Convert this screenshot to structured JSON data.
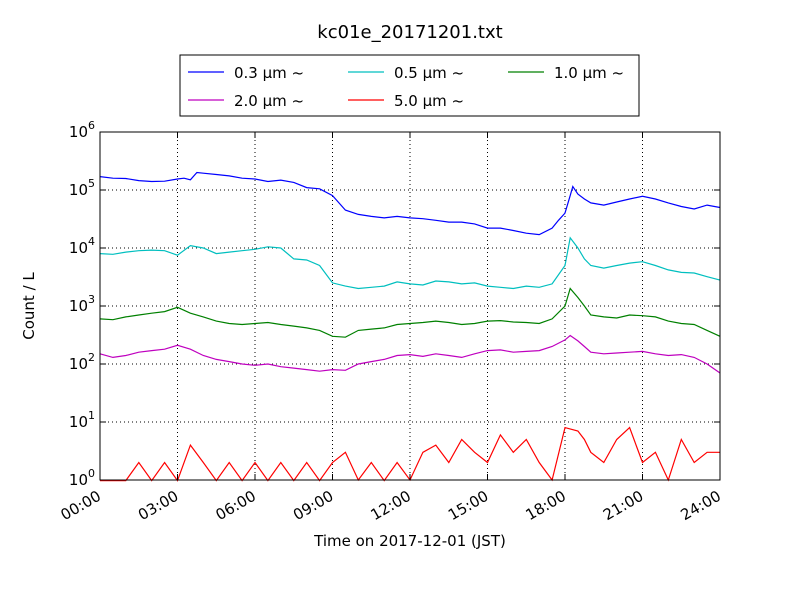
{
  "chart_data": {
    "type": "line",
    "title": "kc01e_20171201.txt",
    "xlabel": "Time on 2017-12-01 (JST)",
    "ylabel": "Count / L",
    "yscale": "log",
    "ylim_exp": [
      0,
      6
    ],
    "y_tick_labels": [
      "10",
      "10",
      "10",
      "10",
      "10",
      "10",
      "10"
    ],
    "y_tick_exponents": [
      "0",
      "1",
      "2",
      "3",
      "4",
      "5",
      "6"
    ],
    "xlim_hours": [
      0,
      24
    ],
    "x_tick_labels": [
      "00:00",
      "03:00",
      "06:00",
      "09:00",
      "12:00",
      "15:00",
      "18:00",
      "21:00",
      "24:00"
    ],
    "grid": true,
    "legend_position": "top-center, above plot",
    "series": [
      {
        "name": "0.3 μm ~",
        "color": "#0000ff",
        "points": [
          [
            0,
            170000
          ],
          [
            0.5,
            160000
          ],
          [
            1,
            158000
          ],
          [
            1.5,
            145000
          ],
          [
            2,
            140000
          ],
          [
            2.5,
            142000
          ],
          [
            3,
            155000
          ],
          [
            3.25,
            160000
          ],
          [
            3.5,
            150000
          ],
          [
            3.75,
            200000
          ],
          [
            4,
            195000
          ],
          [
            4.5,
            185000
          ],
          [
            5,
            175000
          ],
          [
            5.5,
            160000
          ],
          [
            6,
            155000
          ],
          [
            6.5,
            140000
          ],
          [
            7,
            148000
          ],
          [
            7.5,
            135000
          ],
          [
            8,
            110000
          ],
          [
            8.5,
            105000
          ],
          [
            9,
            80000
          ],
          [
            9.5,
            45000
          ],
          [
            10,
            38000
          ],
          [
            10.5,
            35000
          ],
          [
            11,
            33000
          ],
          [
            11.5,
            35000
          ],
          [
            12,
            33000
          ],
          [
            12.5,
            32000
          ],
          [
            13,
            30000
          ],
          [
            13.5,
            28000
          ],
          [
            14,
            28000
          ],
          [
            14.5,
            26000
          ],
          [
            15,
            22000
          ],
          [
            15.5,
            22000
          ],
          [
            16,
            20000
          ],
          [
            16.5,
            18000
          ],
          [
            17,
            17000
          ],
          [
            17.5,
            22000
          ],
          [
            17.75,
            30000
          ],
          [
            18,
            40000
          ],
          [
            18.2,
            80000
          ],
          [
            18.3,
            115000
          ],
          [
            18.5,
            85000
          ],
          [
            18.75,
            70000
          ],
          [
            19,
            60000
          ],
          [
            19.5,
            55000
          ],
          [
            20,
            62000
          ],
          [
            20.5,
            70000
          ],
          [
            21,
            78000
          ],
          [
            21.5,
            70000
          ],
          [
            22,
            60000
          ],
          [
            22.5,
            52000
          ],
          [
            23,
            47000
          ],
          [
            23.5,
            55000
          ],
          [
            24,
            50000
          ]
        ]
      },
      {
        "name": "0.5 μm ~",
        "color": "#00bfbf",
        "points": [
          [
            0,
            8000
          ],
          [
            0.5,
            7800
          ],
          [
            1,
            8500
          ],
          [
            1.5,
            9000
          ],
          [
            2,
            9200
          ],
          [
            2.5,
            9000
          ],
          [
            3,
            7500
          ],
          [
            3.5,
            11000
          ],
          [
            4,
            10000
          ],
          [
            4.5,
            8000
          ],
          [
            5,
            8500
          ],
          [
            5.5,
            9000
          ],
          [
            6,
            9500
          ],
          [
            6.5,
            10500
          ],
          [
            7,
            10000
          ],
          [
            7.5,
            6500
          ],
          [
            8,
            6200
          ],
          [
            8.5,
            5000
          ],
          [
            9,
            2500
          ],
          [
            9.5,
            2200
          ],
          [
            10,
            2000
          ],
          [
            10.5,
            2100
          ],
          [
            11,
            2200
          ],
          [
            11.5,
            2600
          ],
          [
            12,
            2400
          ],
          [
            12.5,
            2300
          ],
          [
            13,
            2700
          ],
          [
            13.5,
            2600
          ],
          [
            14,
            2400
          ],
          [
            14.5,
            2500
          ],
          [
            15,
            2200
          ],
          [
            15.5,
            2100
          ],
          [
            16,
            2000
          ],
          [
            16.5,
            2200
          ],
          [
            17,
            2100
          ],
          [
            17.5,
            2400
          ],
          [
            18,
            5000
          ],
          [
            18.2,
            15000
          ],
          [
            18.5,
            10000
          ],
          [
            18.75,
            6500
          ],
          [
            19,
            5000
          ],
          [
            19.5,
            4500
          ],
          [
            20,
            5000
          ],
          [
            20.5,
            5500
          ],
          [
            21,
            5800
          ],
          [
            21.5,
            5000
          ],
          [
            22,
            4200
          ],
          [
            22.5,
            3800
          ],
          [
            23,
            3700
          ],
          [
            23.5,
            3200
          ],
          [
            24,
            2800
          ]
        ]
      },
      {
        "name": "1.0 μm ~",
        "color": "#008000",
        "points": [
          [
            0,
            600
          ],
          [
            0.5,
            580
          ],
          [
            1,
            650
          ],
          [
            1.5,
            700
          ],
          [
            2,
            750
          ],
          [
            2.5,
            800
          ],
          [
            3,
            950
          ],
          [
            3.5,
            750
          ],
          [
            4,
            650
          ],
          [
            4.5,
            550
          ],
          [
            5,
            500
          ],
          [
            5.5,
            480
          ],
          [
            6,
            500
          ],
          [
            6.5,
            520
          ],
          [
            7,
            480
          ],
          [
            7.5,
            450
          ],
          [
            8,
            420
          ],
          [
            8.5,
            380
          ],
          [
            9,
            300
          ],
          [
            9.5,
            290
          ],
          [
            10,
            380
          ],
          [
            10.5,
            400
          ],
          [
            11,
            420
          ],
          [
            11.5,
            480
          ],
          [
            12,
            500
          ],
          [
            12.5,
            520
          ],
          [
            13,
            550
          ],
          [
            13.5,
            520
          ],
          [
            14,
            480
          ],
          [
            14.5,
            500
          ],
          [
            15,
            550
          ],
          [
            15.5,
            560
          ],
          [
            16,
            530
          ],
          [
            16.5,
            520
          ],
          [
            17,
            500
          ],
          [
            17.5,
            600
          ],
          [
            18,
            1000
          ],
          [
            18.2,
            2000
          ],
          [
            18.5,
            1400
          ],
          [
            18.75,
            1000
          ],
          [
            19,
            700
          ],
          [
            19.5,
            650
          ],
          [
            20,
            620
          ],
          [
            20.5,
            700
          ],
          [
            21,
            680
          ],
          [
            21.5,
            650
          ],
          [
            22,
            550
          ],
          [
            22.5,
            500
          ],
          [
            23,
            480
          ],
          [
            23.5,
            380
          ],
          [
            24,
            300
          ]
        ]
      },
      {
        "name": "2.0 μm ~",
        "color": "#bf00bf",
        "points": [
          [
            0,
            150
          ],
          [
            0.5,
            130
          ],
          [
            1,
            140
          ],
          [
            1.5,
            160
          ],
          [
            2,
            170
          ],
          [
            2.5,
            180
          ],
          [
            3,
            210
          ],
          [
            3.5,
            180
          ],
          [
            4,
            140
          ],
          [
            4.5,
            120
          ],
          [
            5,
            110
          ],
          [
            5.5,
            100
          ],
          [
            6,
            95
          ],
          [
            6.5,
            100
          ],
          [
            7,
            90
          ],
          [
            7.5,
            85
          ],
          [
            8,
            80
          ],
          [
            8.5,
            75
          ],
          [
            9,
            80
          ],
          [
            9.5,
            78
          ],
          [
            10,
            100
          ],
          [
            10.5,
            110
          ],
          [
            11,
            120
          ],
          [
            11.5,
            140
          ],
          [
            12,
            145
          ],
          [
            12.5,
            135
          ],
          [
            13,
            150
          ],
          [
            13.5,
            140
          ],
          [
            14,
            130
          ],
          [
            14.5,
            150
          ],
          [
            15,
            170
          ],
          [
            15.5,
            175
          ],
          [
            16,
            160
          ],
          [
            16.5,
            165
          ],
          [
            17,
            170
          ],
          [
            17.5,
            200
          ],
          [
            18,
            260
          ],
          [
            18.2,
            310
          ],
          [
            18.5,
            250
          ],
          [
            18.75,
            200
          ],
          [
            19,
            160
          ],
          [
            19.5,
            150
          ],
          [
            20,
            155
          ],
          [
            20.5,
            160
          ],
          [
            21,
            165
          ],
          [
            21.5,
            150
          ],
          [
            22,
            140
          ],
          [
            22.5,
            145
          ],
          [
            23,
            130
          ],
          [
            23.5,
            100
          ],
          [
            24,
            70
          ]
        ]
      },
      {
        "name": "5.0 μm ~",
        "color": "#ff0000",
        "points": [
          [
            0,
            0
          ],
          [
            1,
            0
          ],
          [
            1.5,
            2
          ],
          [
            2,
            0
          ],
          [
            2.5,
            2
          ],
          [
            3,
            0
          ],
          [
            3.5,
            4
          ],
          [
            4,
            2
          ],
          [
            4.5,
            0
          ],
          [
            5,
            2
          ],
          [
            5.5,
            0
          ],
          [
            6,
            2
          ],
          [
            6.5,
            0
          ],
          [
            7,
            2
          ],
          [
            7.5,
            0
          ],
          [
            8,
            2
          ],
          [
            8.5,
            0
          ],
          [
            9,
            2
          ],
          [
            9.5,
            3
          ],
          [
            10,
            1
          ],
          [
            10.5,
            2
          ],
          [
            11,
            0
          ],
          [
            11.5,
            2
          ],
          [
            12,
            1
          ],
          [
            12.5,
            3
          ],
          [
            13,
            4
          ],
          [
            13.5,
            2
          ],
          [
            14,
            5
          ],
          [
            14.5,
            3
          ],
          [
            15,
            2
          ],
          [
            15.5,
            6
          ],
          [
            16,
            3
          ],
          [
            16.5,
            5
          ],
          [
            17,
            2
          ],
          [
            17.5,
            1
          ],
          [
            18,
            8
          ],
          [
            18.5,
            7
          ],
          [
            18.75,
            5
          ],
          [
            19,
            3
          ],
          [
            19.5,
            2
          ],
          [
            20,
            5
          ],
          [
            20.5,
            8
          ],
          [
            21,
            2
          ],
          [
            21.5,
            3
          ],
          [
            22,
            1
          ],
          [
            22.5,
            5
          ],
          [
            23,
            2
          ],
          [
            23.5,
            3
          ],
          [
            24,
            3
          ]
        ]
      }
    ]
  }
}
